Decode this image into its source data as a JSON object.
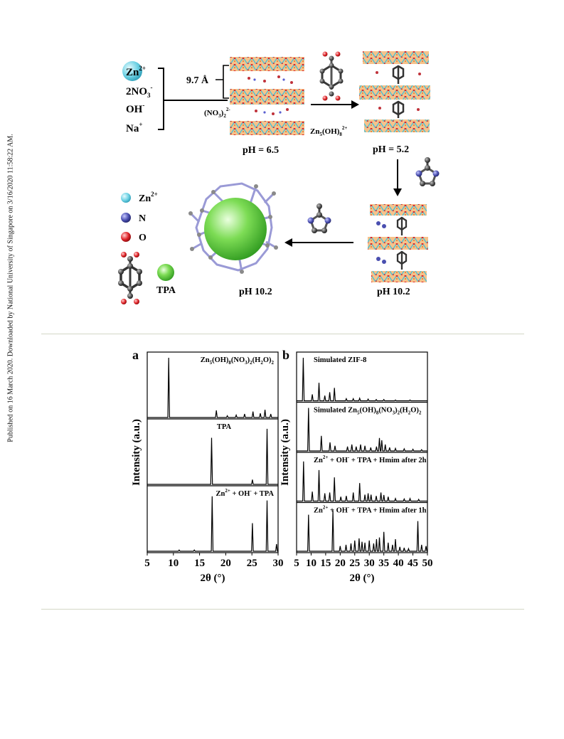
{
  "side_note": "Published on 16 March 2020. Downloaded by National University of Singapore on 3/16/2020 11:58:22 AM.",
  "scheme": {
    "ions": {
      "zn": "Zn",
      "zn_charge": "2+",
      "nitrate": "2NO",
      "nitrate_sub": "3",
      "nitrate_charge": "-",
      "hydroxide": "OH",
      "hydroxide_charge": "-",
      "sodium": "Na",
      "sodium_charge": "+"
    },
    "spacing": "9.7 Å",
    "interlayer_anion": "(NO",
    "interlayer_anion_sub": "3",
    "interlayer_anion_end": ")",
    "interlayer_anion_sub2": "2",
    "interlayer_anion_charge": "2-",
    "layer_formula": "Zn",
    "layer_formula_sub": "5",
    "layer_formula_mid": "(OH)",
    "layer_formula_sub2": "8",
    "layer_formula_charge": "2+",
    "ph_1": "pH = 6.5",
    "ph_2": "pH = 5.2",
    "ph_3": "pH 10.2",
    "ph_4": "pH 10.2",
    "legend": {
      "zn": "Zn",
      "zn_charge": "2+",
      "n": "N",
      "o": "O",
      "tpa": "TPA"
    }
  },
  "colors": {
    "zn": "#5bc8dc",
    "n": "#4a4fb0",
    "o": "#e0252a",
    "c": "#404040",
    "green": "#4fc73a",
    "frame": "#9a9ad6",
    "rule": "#d4d7c6"
  },
  "chart_data": [
    {
      "panel_label": "a",
      "type": "line",
      "xlabel": "2θ (°)",
      "ylabel": "Intensity (a.u.)",
      "xlim": [
        5,
        30
      ],
      "xticks": [
        "5",
        "10",
        "15",
        "20",
        "25",
        "30"
      ],
      "series": [
        {
          "name": "Zn5(OH)8(NO3)2(H2O)2",
          "label_main": "Zn",
          "label_parts": [
            "5",
            "(OH)",
            "8",
            "(NO",
            "3",
            ")",
            "2",
            "(H",
            "2",
            "O)",
            "2"
          ],
          "peaks": [
            [
              9.1,
              1.0
            ],
            [
              18.2,
              0.12
            ],
            [
              20.3,
              0.03
            ],
            [
              22.0,
              0.04
            ],
            [
              23.6,
              0.06
            ],
            [
              25.2,
              0.1
            ],
            [
              26.6,
              0.07
            ],
            [
              27.5,
              0.13
            ],
            [
              28.6,
              0.06
            ]
          ]
        },
        {
          "name": "TPA",
          "peaks": [
            [
              17.3,
              0.78
            ],
            [
              25.1,
              0.08
            ],
            [
              27.9,
              0.93
            ]
          ]
        },
        {
          "name": "Zn2+ + OH- + TPA",
          "label_parts": [
            "Zn",
            "2+",
            " + OH",
            "-",
            " + TPA"
          ],
          "peaks": [
            [
              17.4,
              0.92
            ],
            [
              25.1,
              0.47
            ],
            [
              27.9,
              0.85
            ],
            [
              29.7,
              0.12
            ],
            [
              11.1,
              0.02
            ],
            [
              14.0,
              0.02
            ]
          ]
        }
      ]
    },
    {
      "panel_label": "b",
      "type": "line",
      "xlabel": "2θ (°)",
      "ylabel": "Intensity (a.u.)",
      "xlim": [
        5,
        50
      ],
      "xticks": [
        "5",
        "10",
        "15",
        "20",
        "25",
        "30",
        "35",
        "40",
        "45",
        "50"
      ],
      "series": [
        {
          "name": "Simulated ZIF-8",
          "peaks": [
            [
              7.3,
              1.0
            ],
            [
              10.4,
              0.15
            ],
            [
              12.7,
              0.42
            ],
            [
              14.7,
              0.12
            ],
            [
              16.4,
              0.2
            ],
            [
              18.0,
              0.3
            ],
            [
              22.1,
              0.05
            ],
            [
              24.5,
              0.05
            ],
            [
              26.7,
              0.06
            ],
            [
              29.6,
              0.04
            ],
            [
              32.4,
              0.03
            ],
            [
              35.0,
              0.03
            ],
            [
              39.0,
              0.02
            ],
            [
              44.0,
              0.02
            ]
          ]
        },
        {
          "name": "Simulated Zn5(OH)8(NO3)2(H2O)2",
          "label_parts": [
            "Simulated Zn",
            "5",
            "(OH)",
            "8",
            "(NO",
            "3",
            ")",
            "2",
            "(H",
            "2",
            "O)",
            "2"
          ],
          "peaks": [
            [
              9.1,
              1.0
            ],
            [
              13.5,
              0.35
            ],
            [
              16.5,
              0.2
            ],
            [
              18.2,
              0.12
            ],
            [
              22.5,
              0.1
            ],
            [
              24.0,
              0.15
            ],
            [
              25.5,
              0.1
            ],
            [
              27.0,
              0.15
            ],
            [
              28.5,
              0.12
            ],
            [
              30.5,
              0.08
            ],
            [
              32.5,
              0.1
            ],
            [
              33.5,
              0.3
            ],
            [
              34.3,
              0.25
            ],
            [
              35.5,
              0.15
            ],
            [
              37.0,
              0.08
            ],
            [
              39.0,
              0.06
            ],
            [
              42.0,
              0.05
            ],
            [
              45.0,
              0.04
            ],
            [
              48.0,
              0.03
            ]
          ]
        },
        {
          "name": "Zn2+ + OH- + TPA + Hmim after 2h",
          "label_parts": [
            "Zn",
            "2+",
            " + OH",
            "-",
            " + TPA + Hmim after 2h"
          ],
          "peaks": [
            [
              7.4,
              0.92
            ],
            [
              10.4,
              0.22
            ],
            [
              12.7,
              0.72
            ],
            [
              14.7,
              0.18
            ],
            [
              16.4,
              0.2
            ],
            [
              18.0,
              0.55
            ],
            [
              20.2,
              0.1
            ],
            [
              22.1,
              0.12
            ],
            [
              24.5,
              0.2
            ],
            [
              26.7,
              0.42
            ],
            [
              28.5,
              0.15
            ],
            [
              29.6,
              0.18
            ],
            [
              30.6,
              0.15
            ],
            [
              32.4,
              0.12
            ],
            [
              34.0,
              0.2
            ],
            [
              35.0,
              0.14
            ],
            [
              36.5,
              0.1
            ],
            [
              39.0,
              0.06
            ],
            [
              42.0,
              0.05
            ],
            [
              44.0,
              0.06
            ],
            [
              47.0,
              0.04
            ]
          ]
        },
        {
          "name": "Zn2+ + OH- + TPA + Hmim after 1h",
          "label_parts": [
            "Zn",
            "2+",
            " + OH",
            "-",
            " + TPA + Hmim after 1h"
          ],
          "peaks": [
            [
              9.1,
              0.85
            ],
            [
              17.5,
              0.95
            ],
            [
              20.0,
              0.12
            ],
            [
              22.0,
              0.15
            ],
            [
              23.7,
              0.18
            ],
            [
              25.0,
              0.25
            ],
            [
              26.5,
              0.3
            ],
            [
              27.5,
              0.22
            ],
            [
              28.5,
              0.2
            ],
            [
              30.0,
              0.25
            ],
            [
              31.5,
              0.18
            ],
            [
              32.5,
              0.28
            ],
            [
              33.5,
              0.32
            ],
            [
              35.0,
              0.45
            ],
            [
              36.5,
              0.2
            ],
            [
              38.0,
              0.15
            ],
            [
              39.0,
              0.28
            ],
            [
              40.5,
              0.1
            ],
            [
              42.0,
              0.08
            ],
            [
              43.5,
              0.06
            ],
            [
              46.7,
              0.7
            ],
            [
              48.0,
              0.15
            ],
            [
              49.5,
              0.12
            ]
          ]
        }
      ]
    }
  ]
}
